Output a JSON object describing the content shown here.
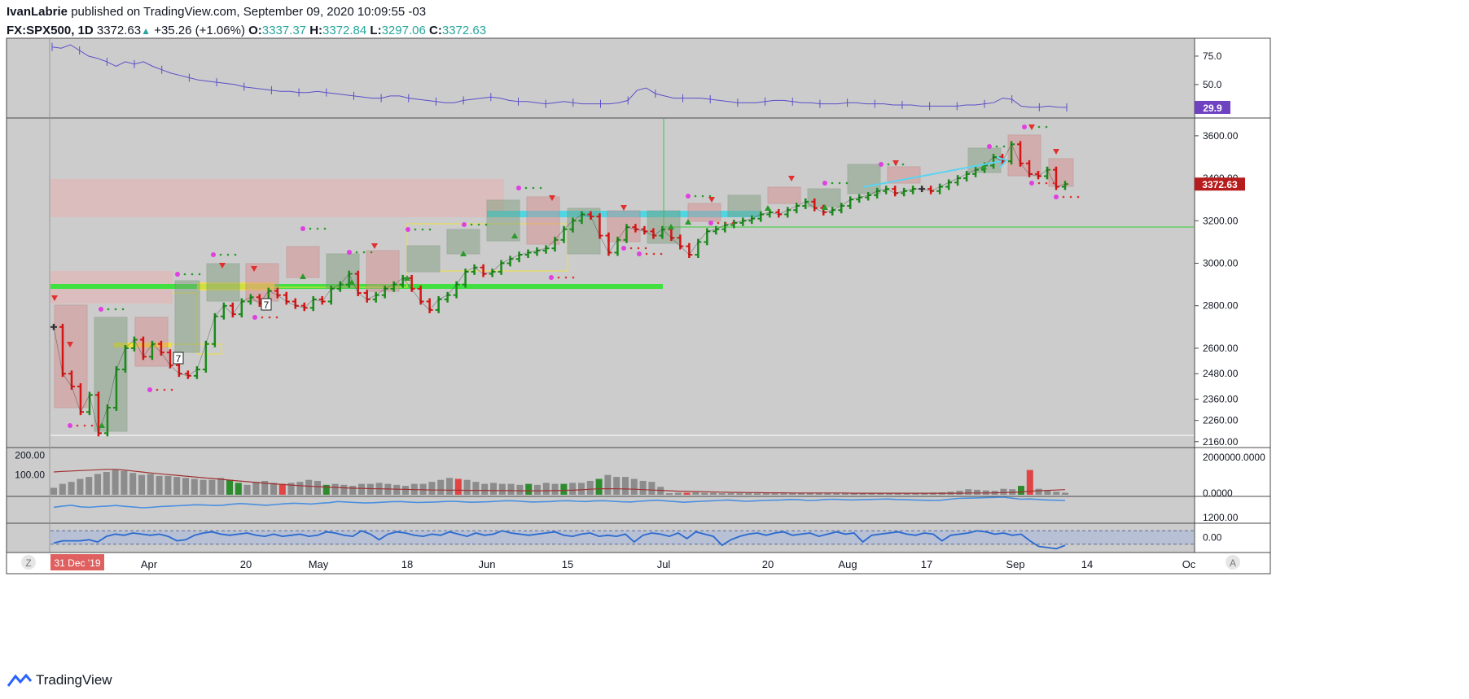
{
  "header": {
    "publisher": "IvanLabrie",
    "published_text": "published on TradingView.com, September 09, 2020 10:09:55 -03",
    "symbol": "FX:SPX500, 1D",
    "last": "3372.63",
    "change": "+35.26 (+1.06%)",
    "o_label": "O:",
    "o": "3337.37",
    "h_label": "H:",
    "h": "3372.84",
    "l_label": "L:",
    "l": "3297.06",
    "c_label": "C:",
    "c": "3372.63"
  },
  "footer": {
    "brand": "TradingView"
  },
  "colors": {
    "background": "#cccccc",
    "up": "#1a8a1a",
    "down": "#d41515",
    "neutral": "#333333",
    "volume_bar": "#8c8c8c",
    "volume_up": "#2e8b2e",
    "volume_down": "#e04444",
    "top_line": "#5b4fc9",
    "rsi_line": "#4a8fe0",
    "price_label_bg": "#b71c1c",
    "top_label_bg": "#6f42c1",
    "date_badge_bg": "#e06060"
  },
  "chart_data": [
    {
      "type": "line",
      "pane": "top",
      "y_ticks": [
        "75.0",
        "50.0"
      ],
      "ylim": [
        22,
        90
      ],
      "last_label": "29.9",
      "series": [
        {
          "values": [
            83,
            82,
            85,
            80,
            75,
            73,
            70,
            66,
            70,
            68,
            70,
            66,
            63,
            60,
            58,
            56,
            54,
            53,
            52,
            51,
            50,
            48,
            47,
            46,
            45,
            44,
            44,
            43,
            43,
            44,
            43,
            42,
            41,
            40,
            39,
            38,
            38,
            40,
            40,
            38,
            37,
            36,
            35,
            34,
            34,
            36,
            37,
            38,
            39,
            38,
            36,
            35,
            35,
            34,
            33,
            34,
            35,
            34,
            33,
            33,
            33,
            33,
            34,
            36,
            45,
            47,
            42,
            40,
            38,
            38,
            38,
            38,
            37,
            36,
            35,
            34,
            34,
            34,
            35,
            36,
            36,
            35,
            34,
            34,
            33,
            33,
            33,
            34,
            34,
            33,
            33,
            33,
            32,
            32,
            32,
            31,
            31,
            31,
            31,
            31,
            32,
            32,
            33,
            34,
            38,
            37,
            31,
            30,
            30,
            31,
            30,
            29.9
          ]
        }
      ]
    },
    {
      "type": "line",
      "pane": "price",
      "y_ticks": [
        "3600.00",
        "3400.00",
        "3200.00",
        "3000.00",
        "2800.00",
        "2600.00",
        "2480.00",
        "2360.00",
        "2260.00",
        "2160.00"
      ],
      "x_ticks": [
        "31 Dec '19",
        "Apr",
        "20",
        "May",
        "18",
        "Jun",
        "15",
        "Jul",
        "20",
        "Aug",
        "17",
        "Sep",
        "14",
        "Oc"
      ],
      "ylim": [
        2140,
        3680
      ],
      "last_label": "3372.63",
      "markers": [
        "7",
        "7"
      ],
      "series": [
        {
          "values": [
            2700,
            2480,
            2420,
            2300,
            2380,
            2200,
            2320,
            2500,
            2600,
            2640,
            2560,
            2620,
            2580,
            2520,
            2480,
            2470,
            2500,
            2620,
            2750,
            2800,
            2760,
            2820,
            2840,
            2810,
            2870,
            2850,
            2820,
            2800,
            2790,
            2830,
            2820,
            2880,
            2900,
            2950,
            2860,
            2830,
            2850,
            2880,
            2900,
            2930,
            2880,
            2820,
            2780,
            2830,
            2850,
            2900,
            2960,
            2980,
            2950,
            2960,
            3000,
            3020,
            3040,
            3050,
            3060,
            3070,
            3110,
            3160,
            3200,
            3230,
            3220,
            3130,
            3050,
            3110,
            3170,
            3160,
            3150,
            3130,
            3160,
            3120,
            3080,
            3040,
            3100,
            3150,
            3160,
            3180,
            3190,
            3200,
            3210,
            3230,
            3240,
            3230,
            3250,
            3270,
            3290,
            3260,
            3240,
            3250,
            3270,
            3300,
            3310,
            3320,
            3340,
            3350,
            3330,
            3340,
            3350,
            3350,
            3340,
            3360,
            3380,
            3400,
            3420,
            3440,
            3460,
            3500,
            3480,
            3560,
            3470,
            3420,
            3410,
            3440,
            3360,
            3372.63
          ]
        }
      ]
    },
    {
      "type": "bar",
      "pane": "volume",
      "y_ticks": [
        "200.00",
        "100.00"
      ],
      "right_ticks": [
        "2000000.0000",
        "0.0000"
      ],
      "ylim": [
        0,
        230
      ],
      "values": [
        35,
        55,
        65,
        80,
        90,
        105,
        115,
        125,
        120,
        110,
        100,
        105,
        95,
        95,
        90,
        85,
        80,
        75,
        75,
        85,
        75,
        60,
        50,
        65,
        70,
        60,
        55,
        60,
        65,
        75,
        70,
        50,
        55,
        50,
        45,
        55,
        55,
        60,
        55,
        50,
        45,
        55,
        55,
        65,
        75,
        85,
        80,
        75,
        65,
        55,
        60,
        55,
        55,
        50,
        55,
        50,
        60,
        55,
        55,
        60,
        60,
        70,
        80,
        100,
        90,
        90,
        80,
        70,
        65,
        40,
        8,
        10,
        10,
        12,
        10,
        9,
        8,
        8,
        8,
        9,
        8,
        7,
        7,
        7,
        8,
        9,
        10,
        9,
        8,
        8,
        8,
        7,
        8,
        8,
        9,
        9,
        9,
        9,
        8,
        10,
        11,
        12,
        15,
        20,
        28,
        25,
        22,
        20,
        30,
        28,
        45,
        125,
        30,
        22,
        15,
        10
      ],
      "series": [
        {
          "values": [
            115,
            118,
            120,
            122,
            124,
            126,
            128,
            128,
            125,
            120,
            115,
            110,
            106,
            102,
            98,
            94,
            90,
            86,
            82,
            78,
            74,
            70,
            66,
            62,
            58,
            55,
            52,
            49,
            46,
            43,
            41,
            39,
            37,
            35,
            33,
            32,
            31,
            30,
            29,
            28,
            27,
            26,
            25,
            24,
            24,
            23,
            23,
            22,
            22,
            22,
            21,
            21,
            21,
            20,
            20,
            20,
            20,
            21,
            22,
            23,
            25,
            28,
            30,
            31,
            30,
            29,
            28,
            26,
            24,
            22,
            20,
            18,
            17,
            16,
            15,
            14,
            13,
            12,
            12,
            11,
            11,
            10,
            10,
            10,
            9,
            9,
            9,
            9,
            9,
            9,
            9,
            8,
            8,
            8,
            8,
            8,
            8,
            8,
            8,
            8,
            8,
            8,
            8,
            8,
            9,
            9,
            9,
            10,
            11,
            12,
            14,
            18,
            20,
            22,
            24,
            26
          ]
        }
      ]
    },
    {
      "type": "line",
      "pane": "indicator",
      "y_ticks": [
        "1200.00"
      ],
      "ylim": [
        0,
        10
      ],
      "series": [
        {
          "values": [
            6,
            6.5,
            6.8,
            6.2,
            6,
            6.3,
            6.5,
            6.7,
            6.4,
            6.1,
            5.8,
            6,
            6.3,
            6.5,
            6.6,
            6.8,
            7,
            6.9,
            6.7,
            6.8,
            7.2,
            7.5,
            7.3,
            7,
            6.8,
            7.1,
            7.4,
            7.6,
            7.5,
            7.3,
            7.6,
            7.8,
            8.3,
            8.1,
            7.9,
            7.7,
            7.8,
            8,
            8.2,
            8.3,
            8.1,
            7.9,
            8,
            8.1,
            8.3,
            8.4,
            8.2,
            8,
            8.1,
            8.2,
            8.4,
            8.6,
            8.5,
            8.3,
            8.1,
            8.2,
            8.3,
            8.5,
            8.6,
            8.4,
            8.3,
            8.5,
            8.6,
            8.4,
            8.2,
            8.1,
            8.4,
            8.6,
            8.8,
            8.5,
            8.3,
            8,
            8.2,
            8.4,
            8.5,
            8.7,
            8.9,
            8.6,
            8.4,
            8.5,
            8.7,
            8.8,
            8.9,
            9.1,
            9,
            8.7,
            8.8,
            9.1,
            9.2,
            9,
            8.9,
            9,
            9.1,
            9.2,
            9.3,
            9.1,
            9,
            8.9,
            8.8,
            8.7,
            8.8,
            9.2,
            9.5,
            9.6,
            9.7,
            9.8,
            9.9,
            10,
            9.6,
            9.2,
            9.3,
            9.1,
            8.9,
            8.8,
            8.7
          ]
        }
      ]
    },
    {
      "type": "line",
      "pane": "oscillator",
      "y_ticks": [
        "0.00"
      ],
      "ylim": [
        -1.2,
        1.2
      ],
      "series": [
        {
          "values": [
            -0.5,
            -0.3,
            -0.3,
            -0.3,
            -0.2,
            -0.4,
            0.1,
            0.3,
            0.2,
            0.4,
            0.3,
            0.2,
            0.3,
            0.1,
            -0.3,
            -0.2,
            0.2,
            0.4,
            0.5,
            0.3,
            0.2,
            0.3,
            0.4,
            0.2,
            0.1,
            0.3,
            0.1,
            0.2,
            0.3,
            0.1,
            0.2,
            0.5,
            0.4,
            0.2,
            0.1,
            0.6,
            0.3,
            -0.2,
            0.3,
            0.5,
            0.4,
            0.2,
            0.1,
            0.3,
            0.2,
            0.5,
            0.3,
            0.1,
            0.4,
            0.2,
            0.3,
            0.6,
            0.4,
            0.3,
            0.2,
            0.3,
            0.4,
            0.5,
            0.2,
            0.1,
            0.3,
            0.4,
            0.1,
            0.2,
            0.1,
            0.3,
            -0.4,
            0.2,
            0.4,
            0.3,
            0.1,
            0.4,
            -0.1,
            0.5,
            0.3,
            0.1,
            -0.7,
            -0.2,
            0.1,
            0.3,
            0.4,
            0.2,
            0.4,
            0.5,
            0.2,
            0.3,
            0.4,
            0.1,
            0.3,
            0.5,
            0.3,
            0.4,
            -0.4,
            0.2,
            0.3,
            0.4,
            0.5,
            0.3,
            0.2,
            0.4,
            0.3,
            -0.3,
            0.2,
            0.3,
            0.4,
            0.6,
            0.5,
            0.3,
            0.4,
            0.2,
            0.3,
            -0.3,
            -0.8,
            -0.9,
            -1,
            -0.7
          ]
        }
      ]
    }
  ]
}
